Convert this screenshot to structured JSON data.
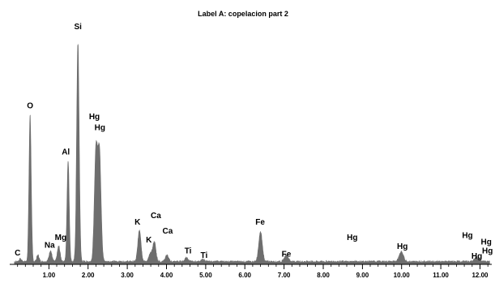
{
  "chart_data": {
    "type": "area",
    "title": "Label A: copelacion part 2",
    "xlabel": "",
    "ylabel": "",
    "xlim": [
      0.0,
      12.3
    ],
    "ylim": [
      0,
      1.0
    ],
    "grid": false,
    "legend": "none",
    "x_ticks": [
      1.0,
      2.0,
      3.0,
      4.0,
      5.0,
      6.0,
      7.0,
      8.0,
      9.0,
      10.0,
      11.0,
      12.0
    ],
    "x_tick_labels": [
      "1.00",
      "2.00",
      "3.00",
      "4.00",
      "5.00",
      "6.00",
      "7.00",
      "8.00",
      "9.00",
      "10.00",
      "11.00",
      "12.00"
    ],
    "series": [
      {
        "color": "#6e6e6e",
        "peaks": [
          {
            "x": 0.27,
            "y": 0.012,
            "w": 0.03
          },
          {
            "x": 0.52,
            "y": 0.67,
            "w": 0.028
          },
          {
            "x": 0.72,
            "y": 0.03,
            "w": 0.03
          },
          {
            "x": 1.04,
            "y": 0.05,
            "w": 0.035
          },
          {
            "x": 1.25,
            "y": 0.07,
            "w": 0.035
          },
          {
            "x": 1.49,
            "y": 0.46,
            "w": 0.028
          },
          {
            "x": 1.74,
            "y": 1.0,
            "w": 0.032
          },
          {
            "x": 2.2,
            "y": 0.5,
            "w": 0.04
          },
          {
            "x": 2.29,
            "y": 0.49,
            "w": 0.04
          },
          {
            "x": 3.31,
            "y": 0.145,
            "w": 0.04
          },
          {
            "x": 3.59,
            "y": 0.035,
            "w": 0.04
          },
          {
            "x": 3.69,
            "y": 0.09,
            "w": 0.04
          },
          {
            "x": 4.01,
            "y": 0.03,
            "w": 0.04
          },
          {
            "x": 4.51,
            "y": 0.02,
            "w": 0.04
          },
          {
            "x": 4.93,
            "y": 0.01,
            "w": 0.04
          },
          {
            "x": 6.4,
            "y": 0.135,
            "w": 0.045
          },
          {
            "x": 7.06,
            "y": 0.03,
            "w": 0.05
          },
          {
            "x": 9.99,
            "y": 0.045,
            "w": 0.055
          },
          {
            "x": 11.92,
            "y": 0.02,
            "w": 0.06
          }
        ],
        "background": 0.012
      }
    ],
    "annotations": [
      {
        "text": "Si",
        "x": 1.74,
        "y": 1.07
      },
      {
        "text": "O",
        "x": 0.52,
        "y": 0.71
      },
      {
        "text": "Hg",
        "x": 2.16,
        "y": 0.66
      },
      {
        "text": "Hg",
        "x": 2.3,
        "y": 0.61
      },
      {
        "text": "Al",
        "x": 1.43,
        "y": 0.5
      },
      {
        "text": "Mg",
        "x": 1.3,
        "y": 0.11
      },
      {
        "text": "Na",
        "x": 1.02,
        "y": 0.075
      },
      {
        "text": "C",
        "x": 0.2,
        "y": 0.04
      },
      {
        "text": "K",
        "x": 3.26,
        "y": 0.18
      },
      {
        "text": "Ca",
        "x": 3.73,
        "y": 0.21
      },
      {
        "text": "K",
        "x": 3.55,
        "y": 0.1
      },
      {
        "text": "Ca",
        "x": 4.03,
        "y": 0.14
      },
      {
        "text": "Ti",
        "x": 4.55,
        "y": 0.05
      },
      {
        "text": "Ti",
        "x": 4.96,
        "y": 0.03
      },
      {
        "text": "Fe",
        "x": 6.39,
        "y": 0.18
      },
      {
        "text": "Fe",
        "x": 7.06,
        "y": 0.035
      },
      {
        "text": "Hg",
        "x": 8.74,
        "y": 0.11
      },
      {
        "text": "Hg",
        "x": 10.02,
        "y": 0.07
      },
      {
        "text": "Hg",
        "x": 11.68,
        "y": 0.12
      },
      {
        "text": "Hg",
        "x": 12.16,
        "y": 0.09
      },
      {
        "text": "Hg",
        "x": 12.19,
        "y": 0.05
      },
      {
        "text": "Hg",
        "x": 11.92,
        "y": 0.025
      }
    ]
  }
}
